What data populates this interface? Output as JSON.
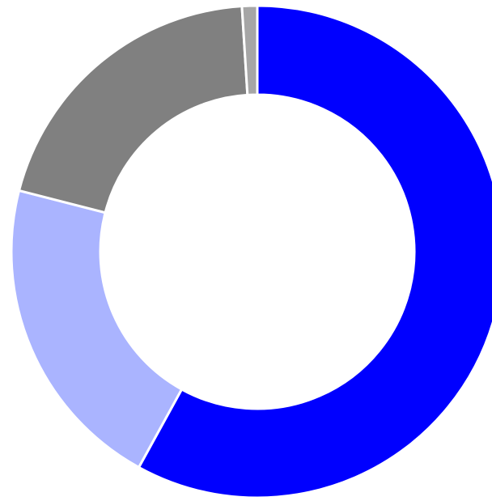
{
  "chart_data": {
    "type": "donut",
    "values": [
      58,
      21,
      20,
      1
    ],
    "colors": [
      "#0000ff",
      "#aab4ff",
      "#808080",
      "#a6a6a6"
    ]
  }
}
